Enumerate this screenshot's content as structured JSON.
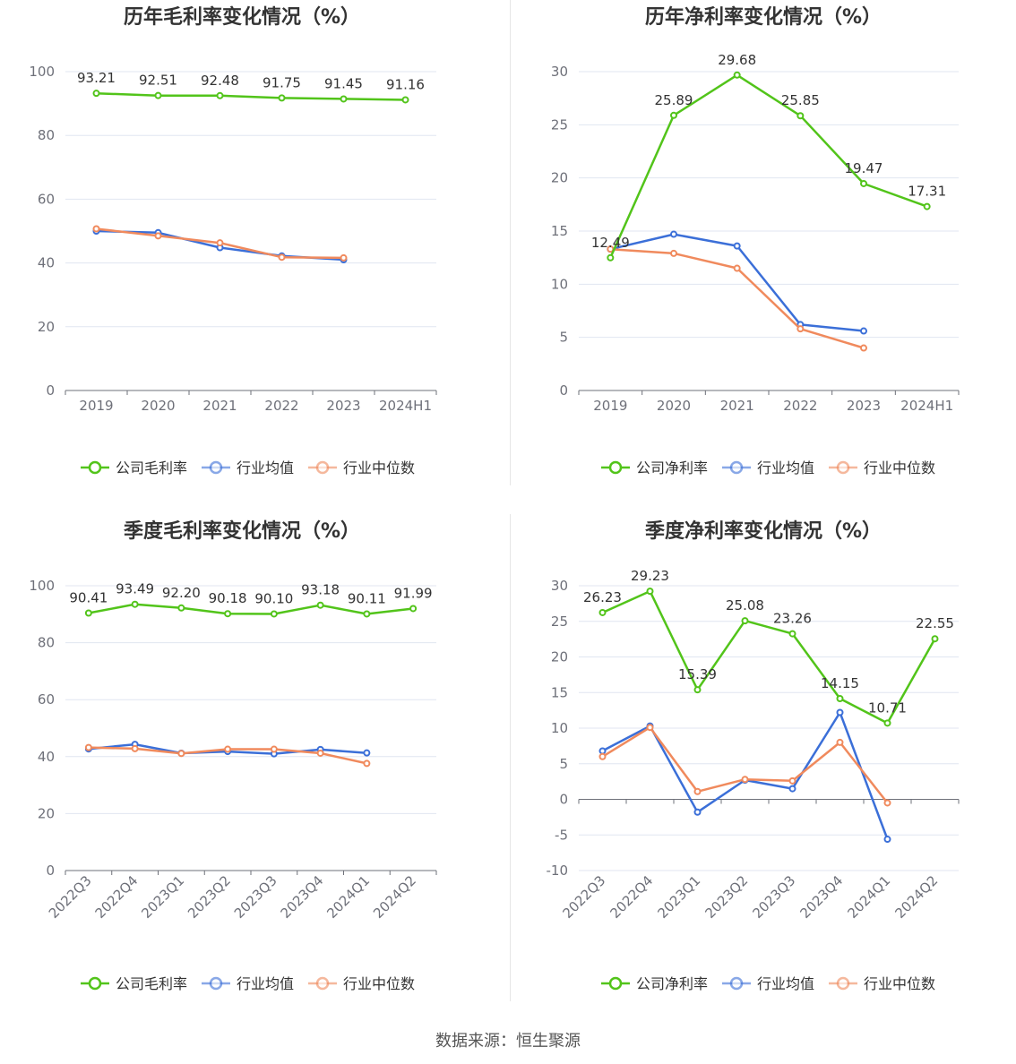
{
  "source": "数据来源：恒生聚源",
  "colors": {
    "company": "#52c41a",
    "avg": "#3b6fd8",
    "median": "#f08a5d"
  },
  "legend_labels": {
    "avg": "行业均值",
    "median": "行业中位数"
  },
  "chart_data": [
    {
      "type": "line",
      "title": "历年毛利率变化情况（%）",
      "categories": [
        "2019",
        "2020",
        "2021",
        "2022",
        "2023",
        "2024H1"
      ],
      "ylim": [
        0,
        100
      ],
      "yticks": [
        0,
        20,
        40,
        60,
        80,
        100
      ],
      "legend_position": "bottom",
      "series": [
        {
          "name": "公司毛利率",
          "key": "company",
          "values": [
            93.21,
            92.51,
            92.48,
            91.75,
            91.45,
            91.16
          ],
          "labels": [
            "93.21",
            "92.51",
            "92.48",
            "91.75",
            "91.45",
            "91.16"
          ]
        },
        {
          "name": "行业均值",
          "key": "avg",
          "values": [
            50.0,
            49.5,
            44.8,
            42.2,
            41.0,
            null
          ]
        },
        {
          "name": "行业中位数",
          "key": "median",
          "values": [
            50.7,
            48.5,
            46.3,
            41.8,
            41.6,
            null
          ]
        }
      ]
    },
    {
      "type": "line",
      "title": "历年净利率变化情况（%）",
      "categories": [
        "2019",
        "2020",
        "2021",
        "2022",
        "2023",
        "2024H1"
      ],
      "ylim": [
        0,
        30
      ],
      "yticks": [
        0,
        5,
        10,
        15,
        20,
        25,
        30
      ],
      "legend_position": "bottom",
      "series": [
        {
          "name": "公司净利率",
          "key": "company",
          "values": [
            12.49,
            25.89,
            29.68,
            25.85,
            19.47,
            17.31
          ],
          "labels": [
            "12.49",
            "25.89",
            "29.68",
            "25.85",
            "19.47",
            "17.31"
          ]
        },
        {
          "name": "行业均值",
          "key": "avg",
          "values": [
            13.3,
            14.7,
            13.6,
            6.2,
            5.6,
            null
          ]
        },
        {
          "name": "行业中位数",
          "key": "median",
          "values": [
            13.3,
            12.9,
            11.5,
            5.8,
            4.0,
            null
          ]
        }
      ]
    },
    {
      "type": "line",
      "title": "季度毛利率变化情况（%）",
      "categories": [
        "2022Q3",
        "2022Q4",
        "2023Q1",
        "2023Q2",
        "2023Q3",
        "2023Q4",
        "2024Q1",
        "2024Q2"
      ],
      "ylim": [
        0,
        100
      ],
      "yticks": [
        0,
        20,
        40,
        60,
        80,
        100
      ],
      "legend_position": "bottom",
      "series": [
        {
          "name": "公司毛利率",
          "key": "company",
          "values": [
            90.41,
            93.49,
            92.2,
            90.18,
            90.1,
            93.18,
            90.11,
            91.99
          ],
          "labels": [
            "90.41",
            "93.49",
            "92.20",
            "90.18",
            "90.10",
            "93.18",
            "90.11",
            "91.99"
          ]
        },
        {
          "name": "行业均值",
          "key": "avg",
          "values": [
            42.7,
            44.3,
            41.2,
            41.8,
            41.0,
            42.5,
            41.3,
            null
          ]
        },
        {
          "name": "行业中位数",
          "key": "median",
          "values": [
            43.2,
            42.8,
            41.1,
            42.6,
            42.6,
            41.2,
            37.6,
            null
          ]
        }
      ]
    },
    {
      "type": "line",
      "title": "季度净利率变化情况（%）",
      "categories": [
        "2022Q3",
        "2022Q4",
        "2023Q1",
        "2023Q2",
        "2023Q3",
        "2023Q4",
        "2024Q1",
        "2024Q2"
      ],
      "ylim": [
        -10,
        30
      ],
      "yticks": [
        -10,
        -5,
        0,
        5,
        10,
        15,
        20,
        25,
        30
      ],
      "legend_position": "bottom",
      "series": [
        {
          "name": "公司净利率",
          "key": "company",
          "values": [
            26.23,
            29.23,
            15.39,
            25.08,
            23.26,
            14.15,
            10.71,
            22.55
          ],
          "labels": [
            "26.23",
            "29.23",
            "15.39",
            "25.08",
            "23.26",
            "14.15",
            "10.71",
            "22.55"
          ]
        },
        {
          "name": "行业均值",
          "key": "avg",
          "values": [
            6.8,
            10.3,
            -1.8,
            2.7,
            1.5,
            12.2,
            -5.6,
            null
          ]
        },
        {
          "name": "行业中位数",
          "key": "median",
          "values": [
            6.0,
            10.1,
            1.1,
            2.8,
            2.6,
            8.0,
            -0.5,
            null
          ]
        }
      ]
    }
  ]
}
